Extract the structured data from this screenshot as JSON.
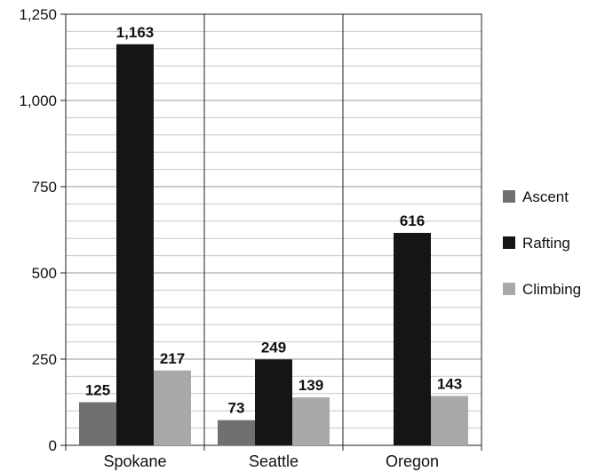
{
  "chart_data": {
    "type": "bar",
    "categories": [
      "Spokane",
      "Seattle",
      "Oregon"
    ],
    "series": [
      {
        "name": "Ascent",
        "values": [
          125,
          73,
          null
        ],
        "color": "#707070"
      },
      {
        "name": "Rafting",
        "values": [
          1163,
          249,
          616
        ],
        "color": "#151515"
      },
      {
        "name": "Climbing",
        "values": [
          217,
          139,
          143
        ],
        "color": "#a9a9a9"
      }
    ],
    "data_labels": [
      [
        "125",
        "73",
        null
      ],
      [
        "1,163",
        "249",
        "616"
      ],
      [
        "217",
        "139",
        "143"
      ]
    ],
    "ylim": [
      0,
      1250
    ],
    "yticks": [
      0,
      250,
      500,
      750,
      1000,
      1250
    ],
    "ytick_labels": [
      "0",
      "250",
      "500",
      "750",
      "1,000",
      "1,250"
    ],
    "minor_grid_step": 50,
    "grid": true,
    "legend_position": "right",
    "title": "",
    "xlabel": "",
    "ylabel": ""
  }
}
